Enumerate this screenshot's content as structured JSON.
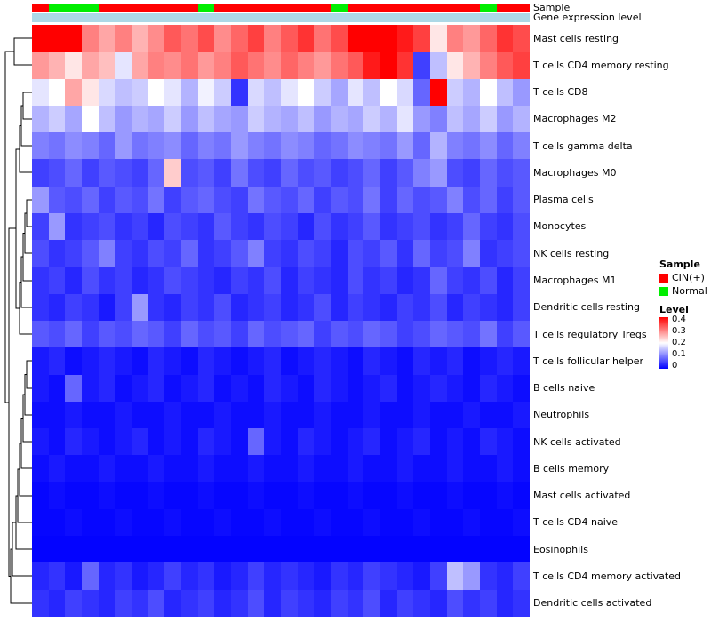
{
  "annotations": {
    "sample_label": "Sample",
    "gene_label": "Gene expression level",
    "gene_color": "#ADD8E6"
  },
  "legend": {
    "sample_title": "Sample",
    "sample_items": [
      {
        "label": "CIN(+)",
        "color": "#FF0000"
      },
      {
        "label": "Normal",
        "color": "#00EE00"
      }
    ],
    "level_title": "Level",
    "level_ticks": [
      "0.4",
      "0.3",
      "0.2",
      "0.1",
      "0"
    ]
  },
  "chart_data": {
    "type": "heatmap",
    "title": "",
    "xlabel": "",
    "ylabel": "",
    "columns_count": 30,
    "value_domain": [
      0,
      0.45
    ],
    "color_scale": {
      "low": "#0000FF",
      "mid": "#FFFFFF",
      "high": "#FF0000",
      "midpoint": 0.2
    },
    "sample_group_colors": {
      "CIN(+)": "#FF0000",
      "Normal": "#00EE00"
    },
    "sample_groups": [
      "CIN(+)",
      "Normal",
      "Normal",
      "Normal",
      "CIN(+)",
      "CIN(+)",
      "CIN(+)",
      "CIN(+)",
      "CIN(+)",
      "CIN(+)",
      "Normal",
      "CIN(+)",
      "CIN(+)",
      "CIN(+)",
      "CIN(+)",
      "CIN(+)",
      "CIN(+)",
      "CIN(+)",
      "Normal",
      "CIN(+)",
      "CIN(+)",
      "CIN(+)",
      "CIN(+)",
      "CIN(+)",
      "CIN(+)",
      "CIN(+)",
      "CIN(+)",
      "Normal",
      "CIN(+)",
      "CIN(+)"
    ],
    "rows": [
      "Mast cells resting",
      "T cells CD4 memory resting",
      "T cells CD8",
      "Macrophages M2",
      "T cells gamma delta",
      "Macrophages M0",
      "Plasma cells",
      "Monocytes",
      "NK cells resting",
      "Macrophages M1",
      "Dendritic cells resting",
      "T cells regulatory Tregs",
      "T cells follicular helper",
      "B cells naive",
      "Neutrophils",
      "NK cells activated",
      "B cells memory",
      "Mast cells activated",
      "T cells CD4 naive",
      "Eosinophils",
      "T cells CD4 memory activated",
      "Dendritic cells activated"
    ],
    "values": [
      [
        0.42,
        0.44,
        0.41,
        0.3,
        0.27,
        0.3,
        0.26,
        0.29,
        0.33,
        0.31,
        0.34,
        0.29,
        0.32,
        0.35,
        0.3,
        0.33,
        0.36,
        0.31,
        0.34,
        0.43,
        0.45,
        0.42,
        0.38,
        0.35,
        0.22,
        0.3,
        0.28,
        0.32,
        0.36,
        0.34
      ],
      [
        0.28,
        0.26,
        0.22,
        0.27,
        0.25,
        0.18,
        0.27,
        0.3,
        0.29,
        0.31,
        0.28,
        0.3,
        0.33,
        0.31,
        0.29,
        0.32,
        0.3,
        0.28,
        0.31,
        0.33,
        0.38,
        0.42,
        0.36,
        0.05,
        0.15,
        0.22,
        0.26,
        0.3,
        0.33,
        0.35
      ],
      [
        0.18,
        0.2,
        0.27,
        0.22,
        0.17,
        0.15,
        0.16,
        0.2,
        0.18,
        0.14,
        0.19,
        0.16,
        0.04,
        0.17,
        0.15,
        0.18,
        0.2,
        0.16,
        0.13,
        0.18,
        0.15,
        0.2,
        0.17,
        0.08,
        0.42,
        0.16,
        0.14,
        0.2,
        0.15,
        0.12
      ],
      [
        0.14,
        0.16,
        0.13,
        0.2,
        0.15,
        0.12,
        0.14,
        0.13,
        0.16,
        0.12,
        0.15,
        0.13,
        0.12,
        0.16,
        0.14,
        0.13,
        0.15,
        0.12,
        0.14,
        0.13,
        0.16,
        0.14,
        0.18,
        0.12,
        0.1,
        0.15,
        0.13,
        0.16,
        0.12,
        0.14
      ],
      [
        0.1,
        0.09,
        0.11,
        0.1,
        0.08,
        0.12,
        0.09,
        0.1,
        0.11,
        0.08,
        0.1,
        0.09,
        0.12,
        0.1,
        0.09,
        0.11,
        0.1,
        0.08,
        0.09,
        0.11,
        0.1,
        0.09,
        0.12,
        0.08,
        0.14,
        0.1,
        0.09,
        0.11,
        0.08,
        0.1
      ],
      [
        0.05,
        0.06,
        0.08,
        0.05,
        0.07,
        0.06,
        0.05,
        0.08,
        0.24,
        0.06,
        0.07,
        0.05,
        0.09,
        0.06,
        0.05,
        0.08,
        0.06,
        0.07,
        0.05,
        0.06,
        0.08,
        0.05,
        0.07,
        0.1,
        0.12,
        0.06,
        0.05,
        0.08,
        0.06,
        0.07
      ],
      [
        0.12,
        0.07,
        0.06,
        0.08,
        0.05,
        0.07,
        0.06,
        0.09,
        0.05,
        0.07,
        0.08,
        0.06,
        0.05,
        0.09,
        0.07,
        0.06,
        0.08,
        0.05,
        0.07,
        0.06,
        0.09,
        0.05,
        0.08,
        0.06,
        0.07,
        0.1,
        0.06,
        0.08,
        0.05,
        0.07
      ],
      [
        0.05,
        0.12,
        0.04,
        0.05,
        0.06,
        0.04,
        0.05,
        0.03,
        0.06,
        0.05,
        0.04,
        0.07,
        0.05,
        0.04,
        0.06,
        0.05,
        0.03,
        0.06,
        0.04,
        0.05,
        0.07,
        0.04,
        0.05,
        0.06,
        0.04,
        0.05,
        0.08,
        0.05,
        0.04,
        0.06
      ],
      [
        0.06,
        0.04,
        0.05,
        0.07,
        0.1,
        0.05,
        0.04,
        0.06,
        0.05,
        0.08,
        0.04,
        0.05,
        0.07,
        0.1,
        0.05,
        0.04,
        0.06,
        0.05,
        0.03,
        0.06,
        0.05,
        0.07,
        0.04,
        0.08,
        0.05,
        0.06,
        0.1,
        0.04,
        0.05,
        0.06
      ],
      [
        0.04,
        0.05,
        0.03,
        0.06,
        0.04,
        0.05,
        0.03,
        0.04,
        0.06,
        0.05,
        0.04,
        0.03,
        0.05,
        0.04,
        0.06,
        0.03,
        0.05,
        0.04,
        0.03,
        0.06,
        0.04,
        0.05,
        0.03,
        0.04,
        0.08,
        0.05,
        0.04,
        0.06,
        0.03,
        0.05
      ],
      [
        0.04,
        0.03,
        0.05,
        0.04,
        0.02,
        0.05,
        0.12,
        0.04,
        0.03,
        0.05,
        0.04,
        0.06,
        0.03,
        0.04,
        0.05,
        0.03,
        0.04,
        0.06,
        0.03,
        0.05,
        0.04,
        0.03,
        0.05,
        0.04,
        0.06,
        0.03,
        0.05,
        0.04,
        0.03,
        0.05
      ],
      [
        0.07,
        0.06,
        0.08,
        0.05,
        0.07,
        0.06,
        0.08,
        0.07,
        0.05,
        0.08,
        0.06,
        0.07,
        0.05,
        0.08,
        0.06,
        0.07,
        0.08,
        0.05,
        0.07,
        0.06,
        0.08,
        0.07,
        0.05,
        0.06,
        0.08,
        0.07,
        0.06,
        0.09,
        0.05,
        0.07
      ],
      [
        0.02,
        0.03,
        0.01,
        0.02,
        0.03,
        0.02,
        0.01,
        0.03,
        0.02,
        0.01,
        0.03,
        0.02,
        0.01,
        0.02,
        0.03,
        0.01,
        0.02,
        0.03,
        0.02,
        0.01,
        0.03,
        0.02,
        0.01,
        0.03,
        0.02,
        0.03,
        0.01,
        0.02,
        0.03,
        0.02
      ],
      [
        0.02,
        0.01,
        0.08,
        0.02,
        0.03,
        0.01,
        0.02,
        0.03,
        0.01,
        0.02,
        0.03,
        0.01,
        0.02,
        0.01,
        0.03,
        0.02,
        0.01,
        0.03,
        0.02,
        0.01,
        0.02,
        0.03,
        0.01,
        0.02,
        0.03,
        0.02,
        0.01,
        0.03,
        0.02,
        0.01
      ],
      [
        0.01,
        0.01,
        0.02,
        0.01,
        0.01,
        0.02,
        0.01,
        0.01,
        0.02,
        0.01,
        0.01,
        0.02,
        0.01,
        0.01,
        0.02,
        0.01,
        0.01,
        0.02,
        0.01,
        0.01,
        0.02,
        0.01,
        0.01,
        0.02,
        0.01,
        0.01,
        0.02,
        0.01,
        0.01,
        0.02
      ],
      [
        0.02,
        0.01,
        0.03,
        0.02,
        0.01,
        0.02,
        0.03,
        0.01,
        0.02,
        0.01,
        0.03,
        0.02,
        0.01,
        0.08,
        0.02,
        0.01,
        0.03,
        0.02,
        0.01,
        0.02,
        0.03,
        0.01,
        0.02,
        0.03,
        0.01,
        0.02,
        0.01,
        0.03,
        0.02,
        0.01
      ],
      [
        0.01,
        0.02,
        0.01,
        0.01,
        0.02,
        0.01,
        0.01,
        0.02,
        0.01,
        0.01,
        0.02,
        0.01,
        0.01,
        0.02,
        0.01,
        0.01,
        0.02,
        0.01,
        0.01,
        0.02,
        0.01,
        0.01,
        0.02,
        0.01,
        0.01,
        0.02,
        0.01,
        0.01,
        0.02,
        0.01
      ],
      [
        0.005,
        0.01,
        0.005,
        0.005,
        0.01,
        0.005,
        0.005,
        0.01,
        0.005,
        0.005,
        0.01,
        0.005,
        0.005,
        0.01,
        0.005,
        0.005,
        0.01,
        0.005,
        0.005,
        0.01,
        0.005,
        0.005,
        0.01,
        0.005,
        0.005,
        0.01,
        0.005,
        0.005,
        0.01,
        0.005
      ],
      [
        0.005,
        0.005,
        0.01,
        0.005,
        0.005,
        0.01,
        0.005,
        0.005,
        0.01,
        0.005,
        0.005,
        0.01,
        0.005,
        0.005,
        0.01,
        0.005,
        0.005,
        0.01,
        0.005,
        0.005,
        0.01,
        0.005,
        0.005,
        0.01,
        0.005,
        0.005,
        0.01,
        0.005,
        0.005,
        0.01
      ],
      [
        0.002,
        0.002,
        0.002,
        0.002,
        0.002,
        0.002,
        0.002,
        0.002,
        0.002,
        0.002,
        0.002,
        0.002,
        0.002,
        0.002,
        0.002,
        0.002,
        0.002,
        0.002,
        0.002,
        0.002,
        0.002,
        0.002,
        0.002,
        0.002,
        0.002,
        0.002,
        0.002,
        0.002,
        0.002,
        0.002
      ],
      [
        0.03,
        0.04,
        0.02,
        0.08,
        0.03,
        0.04,
        0.02,
        0.03,
        0.05,
        0.03,
        0.04,
        0.02,
        0.03,
        0.05,
        0.03,
        0.04,
        0.03,
        0.02,
        0.04,
        0.03,
        0.05,
        0.04,
        0.03,
        0.02,
        0.05,
        0.15,
        0.12,
        0.04,
        0.03,
        0.05
      ],
      [
        0.04,
        0.03,
        0.05,
        0.04,
        0.03,
        0.05,
        0.04,
        0.06,
        0.03,
        0.04,
        0.05,
        0.03,
        0.04,
        0.06,
        0.03,
        0.05,
        0.04,
        0.03,
        0.05,
        0.04,
        0.06,
        0.03,
        0.05,
        0.04,
        0.03,
        0.06,
        0.04,
        0.05,
        0.03,
        0.04
      ]
    ]
  }
}
